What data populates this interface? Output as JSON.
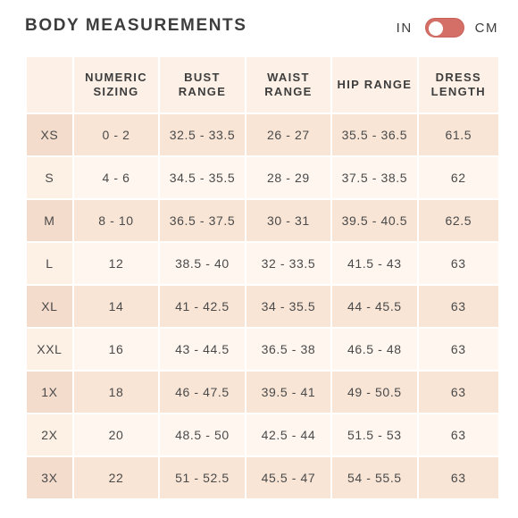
{
  "header": {
    "title": "BODY MEASUREMENTS",
    "unit_left": "IN",
    "unit_right": "CM",
    "toggle_selected": "CM"
  },
  "colors": {
    "header_cell": "#fdf1e7",
    "row_odd_size": "#f4dccc",
    "row_odd_cell": "#f8e5d6",
    "row_even_size": "#fdf0e5",
    "row_even_cell": "#fef6ef",
    "toggle_track": "#d46f68",
    "toggle_border": "#c9615a"
  },
  "table": {
    "columns": [
      {
        "id": "size",
        "label": ""
      },
      {
        "id": "numeric",
        "label": "NUMERIC SIZING"
      },
      {
        "id": "bust",
        "label": "BUST RANGE"
      },
      {
        "id": "waist",
        "label": "WAIST RANGE"
      },
      {
        "id": "hip",
        "label": "HIP RANGE"
      },
      {
        "id": "length",
        "label": "DRESS LENGTH"
      }
    ],
    "rows": [
      [
        "XS",
        "0 - 2",
        "32.5 - 33.5",
        "26 - 27",
        "35.5 - 36.5",
        "61.5"
      ],
      [
        "S",
        "4 - 6",
        "34.5 - 35.5",
        "28 - 29",
        "37.5 - 38.5",
        "62"
      ],
      [
        "M",
        "8 - 10",
        "36.5 - 37.5",
        "30 - 31",
        "39.5 - 40.5",
        "62.5"
      ],
      [
        "L",
        "12",
        "38.5 - 40",
        "32 - 33.5",
        "41.5 - 43",
        "63"
      ],
      [
        "XL",
        "14",
        "41 - 42.5",
        "34 - 35.5",
        "44 - 45.5",
        "63"
      ],
      [
        "XXL",
        "16",
        "43 - 44.5",
        "36.5 - 38",
        "46.5 - 48",
        "63"
      ],
      [
        "1X",
        "18",
        "46 - 47.5",
        "39.5 - 41",
        "49 - 50.5",
        "63"
      ],
      [
        "2X",
        "20",
        "48.5 - 50",
        "42.5 - 44",
        "51.5 - 53",
        "63"
      ],
      [
        "3X",
        "22",
        "51 - 52.5",
        "45.5 - 47",
        "54 - 55.5",
        "63"
      ]
    ]
  }
}
